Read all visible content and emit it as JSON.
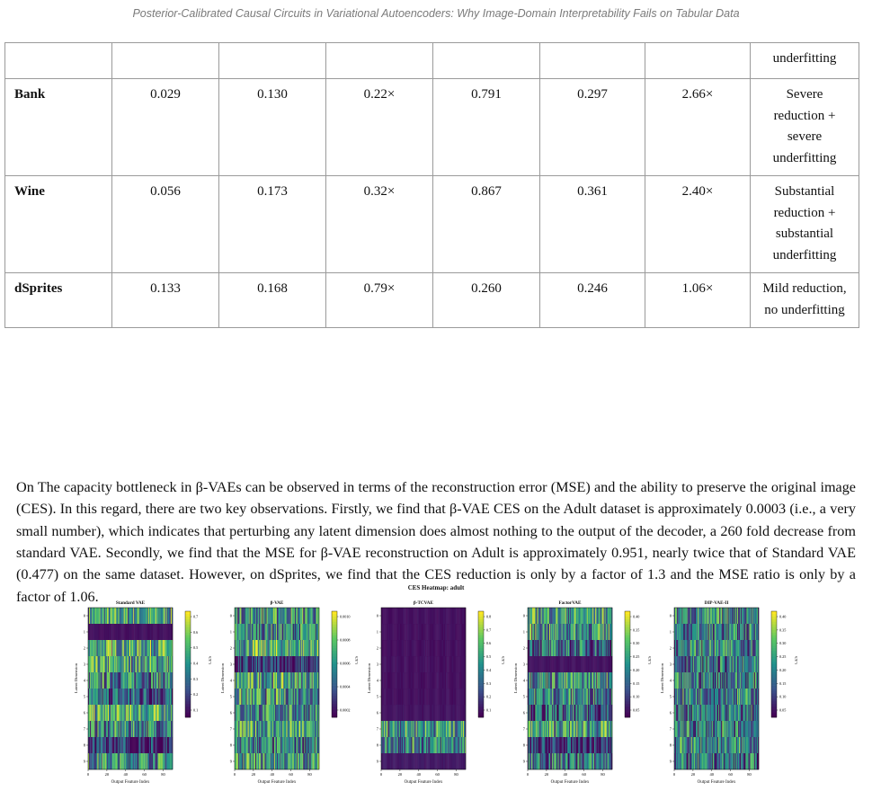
{
  "running_head": "Posterior-Calibrated Causal Circuits in Variational Autoencoders: Why Image-Domain Interpretability Fails on Tabular Data",
  "table": {
    "continued_row": [
      "",
      "",
      "",
      "",
      "",
      "",
      "",
      "underfitting"
    ],
    "rows": [
      {
        "dataset": "Bank",
        "values": [
          "0.029",
          "0.130",
          "0.22×",
          "0.791",
          "0.297",
          "2.66×"
        ],
        "interpretation": [
          "Severe",
          "reduction +",
          "severe",
          "underfitting"
        ]
      },
      {
        "dataset": "Wine",
        "values": [
          "0.056",
          "0.173",
          "0.32×",
          "0.867",
          "0.361",
          "2.40×"
        ],
        "interpretation": [
          "Substantial",
          "reduction +",
          "substantial",
          "underfitting"
        ]
      },
      {
        "dataset": "dSprites",
        "values": [
          "0.133",
          "0.168",
          "0.79×",
          "0.260",
          "0.246",
          "1.06×"
        ],
        "interpretation": [
          "Mild reduction,",
          "no underfitting"
        ]
      }
    ]
  },
  "paragraph": "On The capacity bottleneck in β-VAEs can be observed in terms of the reconstruction error (MSE) and the ability to preserve the original image (CES). In this regard, there are two key observations. Firstly, we find that β-VAE CES on the Adult dataset is approximately 0.0003 (i.e., a very small number), which indicates that perturbing any latent dimension does almost nothing to the output of the decoder, a 260 fold decrease from standard VAE. Secondly, we find that the MSE for β-VAE reconstruction on Adult is approximately 0.951, nearly twice that of Standard VAE (0.477) on the same dataset. However, on dSprites, we find that the CES reduction is only by a factor of 1.3 and the MSE ratio is only by a factor of 1.06.",
  "figure": {
    "title": "CES Heatmap: adult",
    "colormap": [
      "#440154",
      "#3b528b",
      "#21918c",
      "#5ec962",
      "#fde725"
    ],
    "panels": [
      {
        "title": "Standard VAE",
        "xlabel": "Output Feature Index",
        "ylabel": "Latent Dimension",
        "colorbar_label": "CES",
        "x_ticks": [
          "0",
          "20",
          "40",
          "60",
          "80"
        ],
        "y_ticks": [
          "0",
          "1",
          "2",
          "3",
          "4",
          "5",
          "6",
          "7",
          "8",
          "9"
        ],
        "colorbar_ticks": [
          "0.7",
          "0.6",
          "0.5",
          "0.4",
          "0.3",
          "0.2",
          "0.1"
        ],
        "row_levels": [
          0.55,
          0.02,
          0.6,
          0.55,
          0.45,
          0.3,
          0.6,
          0.45,
          0.1,
          0.5
        ]
      },
      {
        "title": "β-VAE",
        "xlabel": "Output Feature Index",
        "ylabel": "Latent Dimension",
        "colorbar_label": "CES",
        "x_ticks": [
          "0",
          "20",
          "40",
          "60",
          "80"
        ],
        "y_ticks": [
          "0",
          "1",
          "2",
          "3",
          "4",
          "5",
          "6",
          "7",
          "8",
          "9"
        ],
        "colorbar_ticks": [
          "0.0010",
          "0.0008",
          "0.0006",
          "0.0004",
          "0.0002"
        ],
        "row_levels": [
          0.5,
          0.45,
          0.6,
          0.1,
          0.55,
          0.5,
          0.45,
          0.55,
          0.4,
          0.5
        ]
      },
      {
        "title": "β-TCVAE",
        "xlabel": "Output Feature Index",
        "ylabel": "Latent Dimension",
        "colorbar_label": "CES",
        "x_ticks": [
          "0",
          "20",
          "40",
          "60",
          "80"
        ],
        "y_ticks": [
          "0",
          "1",
          "2",
          "3",
          "4",
          "5",
          "6",
          "7",
          "8",
          "9"
        ],
        "colorbar_ticks": [
          "0.8",
          "0.7",
          "0.6",
          "0.5",
          "0.4",
          "0.3",
          "0.2",
          "0.1"
        ],
        "row_levels": [
          0.02,
          0.02,
          0.02,
          0.02,
          0.02,
          0.02,
          0.03,
          0.55,
          0.45,
          0.05
        ]
      },
      {
        "title": "FactorVAE",
        "xlabel": "Output Feature Index",
        "ylabel": "Latent Dimension",
        "colorbar_label": "CES",
        "x_ticks": [
          "0",
          "20",
          "40",
          "60",
          "80"
        ],
        "y_ticks": [
          "0",
          "1",
          "2",
          "3",
          "4",
          "5",
          "6",
          "7",
          "8",
          "9"
        ],
        "colorbar_ticks": [
          "0.40",
          "0.35",
          "0.30",
          "0.25",
          "0.20",
          "0.15",
          "0.10",
          "0.05"
        ],
        "row_levels": [
          0.55,
          0.5,
          0.35,
          0.03,
          0.5,
          0.45,
          0.3,
          0.55,
          0.1,
          0.4
        ]
      },
      {
        "title": "DIP-VAE-II",
        "xlabel": "Output Feature Index",
        "ylabel": "Latent Dimension",
        "colorbar_label": "CES",
        "x_ticks": [
          "0",
          "20",
          "40",
          "60",
          "80"
        ],
        "y_ticks": [
          "0",
          "1",
          "2",
          "3",
          "4",
          "5",
          "6",
          "7",
          "8",
          "9"
        ],
        "colorbar_ticks": [
          "0.40",
          "0.35",
          "0.30",
          "0.25",
          "0.20",
          "0.15",
          "0.10",
          "0.05"
        ],
        "row_levels": [
          0.45,
          0.4,
          0.45,
          0.35,
          0.4,
          0.45,
          0.35,
          0.4,
          0.45,
          0.35
        ]
      }
    ]
  },
  "chart_data": {
    "type": "heatmap",
    "title": "CES Heatmap: adult",
    "panels": [
      "Standard VAE",
      "β-VAE",
      "β-TCVAE",
      "FactorVAE",
      "DIP-VAE-II"
    ],
    "xlabel": "Output Feature Index",
    "ylabel": "Latent Dimension",
    "colorbar_label": "CES",
    "x_range": [
      0,
      90
    ],
    "y_categories": [
      "0",
      "1",
      "2",
      "3",
      "4",
      "5",
      "6",
      "7",
      "8",
      "9"
    ]
  }
}
